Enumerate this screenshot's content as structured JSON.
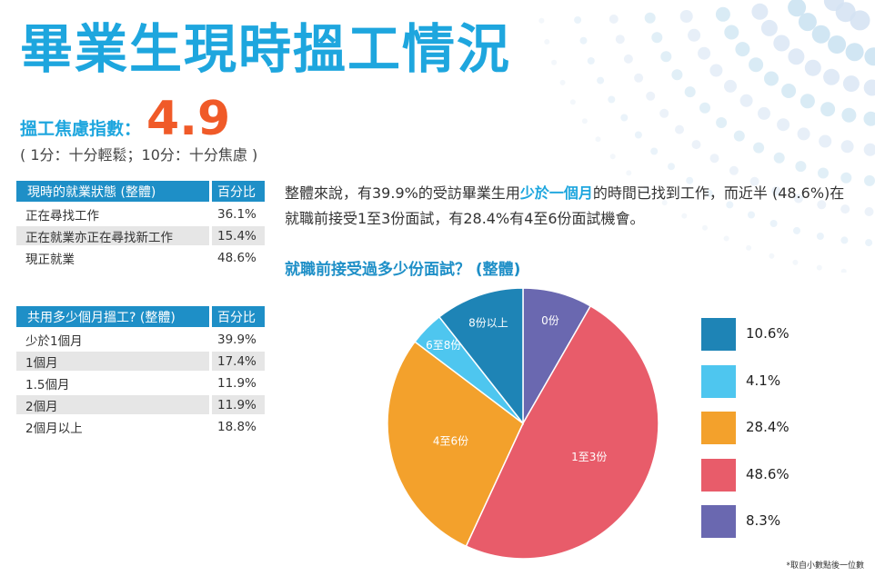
{
  "title": "畢業生現時搵工情況",
  "stress_index": {
    "label": "搵工焦慮指數：",
    "value": "4.9",
    "scale": "( 1分：十分輕鬆；10分：十分焦慮 )"
  },
  "table_status": {
    "header": "現時的就業狀態 (整體)",
    "pct_header": "百分比",
    "rows": [
      {
        "label": "正在尋找工作",
        "value": "36.1%"
      },
      {
        "label": "正在就業亦正在尋找新工作",
        "value": "15.4%"
      },
      {
        "label": "現正就業",
        "value": "48.6%"
      }
    ]
  },
  "table_months": {
    "header": "共用多少個月搵工? (整體)",
    "pct_header": "百分比",
    "rows": [
      {
        "label": "少於1個月",
        "value": "39.9%"
      },
      {
        "label": "1個月",
        "value": "17.4%"
      },
      {
        "label": "1.5個月",
        "value": "11.9%"
      },
      {
        "label": "2個月",
        "value": "11.9%"
      },
      {
        "label": "2個月以上",
        "value": "18.8%"
      }
    ]
  },
  "summary": {
    "part1": "整體來說，有39.9%的受訪畢業生用",
    "highlight": "少於一個月",
    "part2": "的時間已找到工作，而近半 (48.6%)在就職前接受1至3份面試，有28.4%有4至6份面試機會。"
  },
  "chart_data": {
    "type": "pie",
    "title": "就職前接受過多少份面試？ (整體)",
    "slices": [
      {
        "label": "0份",
        "value": 8.3,
        "legend": "8.3%",
        "color": "#6a68b0"
      },
      {
        "label": "1至3份",
        "value": 48.6,
        "legend": "48.6%",
        "color": "#e85c6a"
      },
      {
        "label": "4至6份",
        "value": 28.4,
        "legend": "28.4%",
        "color": "#f3a12c"
      },
      {
        "label": "6至8份",
        "value": 4.1,
        "legend": "4.1%",
        "color": "#4ec6ef"
      },
      {
        "label": "8份以上",
        "value": 10.6,
        "legend": "10.6%",
        "color": "#1e84b6"
      }
    ],
    "legend_order": [
      4,
      3,
      2,
      1,
      0
    ],
    "legend_placement": "right"
  },
  "footnote": "*取自小數點後一位數"
}
